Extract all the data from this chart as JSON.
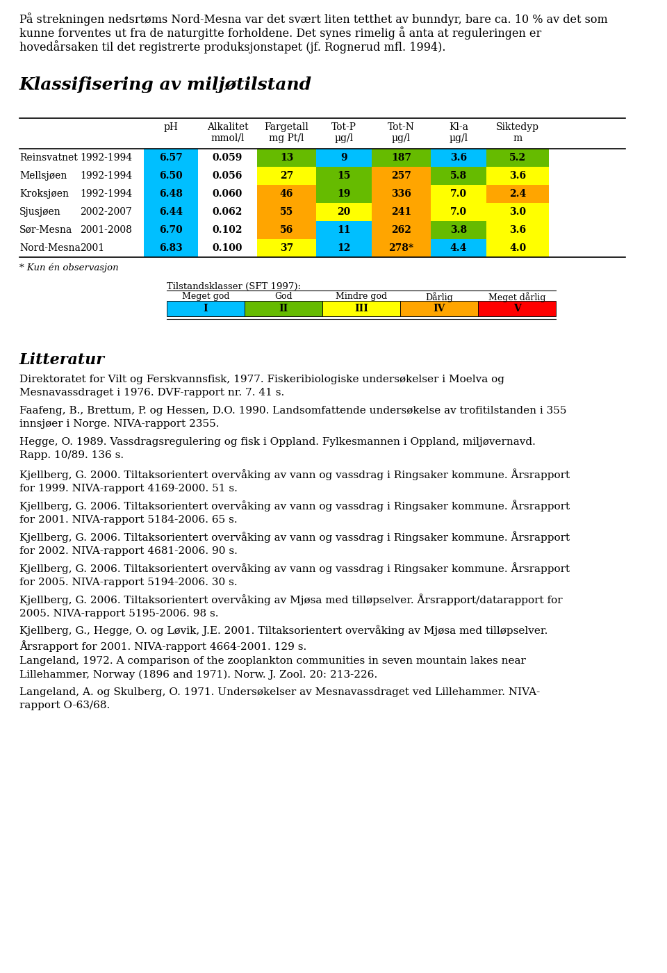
{
  "section_title": "Klassifisering av miljøtilstand",
  "col_headers_1": [
    "pH",
    "Alkalitet",
    "Fargetall",
    "Tot-P",
    "Tot-N",
    "Kl-a",
    "Siktedyp"
  ],
  "col_headers_2": [
    "",
    "mmol/l",
    "mg Pt/l",
    "µg/l",
    "µg/l",
    "µg/l",
    "m"
  ],
  "rows": [
    {
      "name": "Reinsvatnet",
      "period": "1992-1994",
      "vals": [
        "6.57",
        "0.059",
        "13",
        "9",
        "187",
        "3.6",
        "5.2"
      ],
      "colors": [
        "#00BFFF",
        "#FFFFFF",
        "#66BB00",
        "#00BFFF",
        "#66BB00",
        "#00BFFF",
        "#66BB00"
      ]
    },
    {
      "name": "Mellsjøen",
      "period": "1992-1994",
      "vals": [
        "6.50",
        "0.056",
        "27",
        "15",
        "257",
        "5.8",
        "3.6"
      ],
      "colors": [
        "#00BFFF",
        "#FFFFFF",
        "#FFFF00",
        "#66BB00",
        "#FFA500",
        "#66BB00",
        "#FFFF00"
      ]
    },
    {
      "name": "Kroksjøen",
      "period": "1992-1994",
      "vals": [
        "6.48",
        "0.060",
        "46",
        "19",
        "336",
        "7.0",
        "2.4"
      ],
      "colors": [
        "#00BFFF",
        "#FFFFFF",
        "#FFA500",
        "#66BB00",
        "#FFA500",
        "#FFFF00",
        "#FFA500"
      ]
    },
    {
      "name": "Sjusjøen",
      "period": "2002-2007",
      "vals": [
        "6.44",
        "0.062",
        "55",
        "20",
        "241",
        "7.0",
        "3.0"
      ],
      "colors": [
        "#00BFFF",
        "#FFFFFF",
        "#FFA500",
        "#FFFF00",
        "#FFA500",
        "#FFFF00",
        "#FFFF00"
      ]
    },
    {
      "name": "Sør-Mesna",
      "period": "2001-2008",
      "vals": [
        "6.70",
        "0.102",
        "56",
        "11",
        "262",
        "3.8",
        "3.6"
      ],
      "colors": [
        "#00BFFF",
        "#FFFFFF",
        "#FFA500",
        "#00BFFF",
        "#FFA500",
        "#66BB00",
        "#FFFF00"
      ]
    },
    {
      "name": "Nord-Mesna",
      "period": "2001",
      "vals": [
        "6.83",
        "0.100",
        "37",
        "12",
        "278*",
        "4.4",
        "4.0"
      ],
      "colors": [
        "#00BFFF",
        "#FFFFFF",
        "#FFFF00",
        "#00BFFF",
        "#FFA500",
        "#00BFFF",
        "#FFFF00"
      ]
    }
  ],
  "footnote": "* Kun én observasjon",
  "legend_title": "Tilstandsklasser (SFT 1997):",
  "legend_items": [
    {
      "label": "Meget god",
      "roman": "I",
      "color": "#00BFFF"
    },
    {
      "label": "God",
      "roman": "II",
      "color": "#66BB00"
    },
    {
      "label": "Mindre god",
      "roman": "III",
      "color": "#FFFF00"
    },
    {
      "label": "Dårlig",
      "roman": "IV",
      "color": "#FFA500"
    },
    {
      "label": "Meget dårlig",
      "roman": "V",
      "color": "#FF0000"
    }
  ],
  "litteratur_title": "Litteratur",
  "ref_texts": [
    "Direktoratet for Vilt og Ferskvannsfisk, 1977. Fiskeribiologiske undersøkelser i Moelva og\nMesnavassdraget i 1976. DVF-rapport nr. 7. 41 s.",
    "Faafeng, B., Brettum, P. og Hessen, D.O. 1990. Landsomfattende undersøkelse av trofitilstanden i 355\ninnsjøer i Norge. NIVA-rapport 2355.",
    "Hegge, O. 1989. Vassdragsregulering og fisk i Oppland. Fylkesmannen i Oppland, miljøvernavd.\nRapp. 10/89. 136 s.",
    "Kjellberg, G. 2000. Tiltaksorientert overvåking av vann og vassdrag i Ringsaker kommune. Årsrapport\nfor 1999. NIVA-rapport 4169-2000. 51 s.",
    "Kjellberg, G. 2006. Tiltaksorientert overvåking av vann og vassdrag i Ringsaker kommune. Årsrapport\nfor 2001. NIVA-rapport 5184-2006. 65 s.",
    "Kjellberg, G. 2006. Tiltaksorientert overvåking av vann og vassdrag i Ringsaker kommune. Årsrapport\nfor 2002. NIVA-rapport 4681-2006. 90 s.",
    "Kjellberg, G. 2006. Tiltaksorientert overvåking av vann og vassdrag i Ringsaker kommune. Årsrapport\nfor 2005. NIVA-rapport 5194-2006. 30 s.",
    "Kjellberg, G. 2006. Tiltaksorientert overvåking av Mjøsa med tilløpselver. Årsrapport/datarapport for\n2005. NIVA-rapport 5195-2006. 98 s.",
    "Kjellberg, G., Hegge, O. og Løvik, J.E. 2001. Tiltaksorientert overvåking av Mjøsa med tilløpselver.\nÅrsrapport for 2001. NIVA-rapport 4664-2001. 129 s.",
    "Langeland, 1972. A comparison of the zooplankton communities in seven mountain lakes near\nLillehammer, Norway (1896 and 1971). Norw. J. Zool. 20: 213-226.",
    "Langeland, A. og Skulberg, O. 1971. Undersøkelser av Mesnavassdraget ved Lillehammer. NIVA-\nrapport O-63/68."
  ],
  "intro_lines": [
    "På strekningen nedsrtøms Nord-Mesna var det svært liten tetthet av bunndyr, bare ca. 10 % av det som",
    "kunne forventes ut fra de naturgitte forholdene. Det synes rimelig å anta at reguleringen er",
    "hovedårsaken til det registrerte produksjonstapet (jf. Rognerud mfl. 1994)."
  ]
}
